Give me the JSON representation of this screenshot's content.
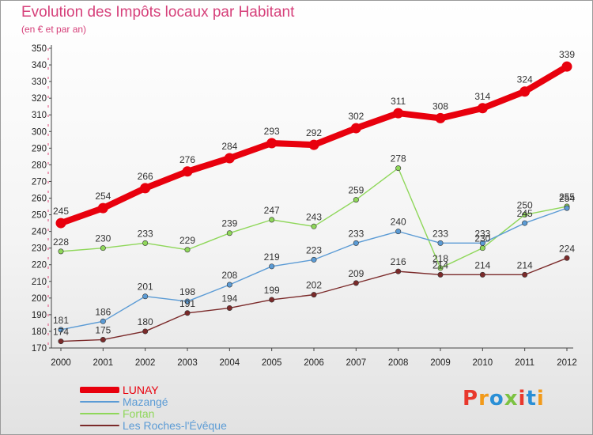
{
  "title": "Evolution des Impôts locaux par Habitant",
  "subtitle": "(en € et par an)",
  "logo_text": "Proxiti",
  "logo_colors": [
    "#e8382c",
    "#f29a1a",
    "#2a8fd6",
    "#7cc242",
    "#e8382c",
    "#2a8fd6",
    "#f29a1a"
  ],
  "chart_data": {
    "type": "line",
    "x": [
      "2000",
      "2001",
      "2002",
      "2003",
      "2004",
      "2005",
      "2006",
      "2007",
      "2008",
      "2009",
      "2010",
      "2011",
      "2012"
    ],
    "ylim": [
      170,
      350
    ],
    "yticks": [
      170,
      180,
      190,
      200,
      210,
      220,
      230,
      240,
      250,
      260,
      270,
      280,
      290,
      300,
      310,
      320,
      330,
      340,
      350
    ],
    "grid": false,
    "legend_placement": "bottom-left",
    "series": [
      {
        "name": "LUNAY",
        "color": "#e8000d",
        "values": [
          245,
          254,
          266,
          276,
          284,
          293,
          292,
          302,
          311,
          308,
          314,
          324,
          339
        ]
      },
      {
        "name": "Mazangé",
        "color": "#5b9bd5",
        "values": [
          181,
          186,
          201,
          198,
          208,
          219,
          223,
          233,
          240,
          233,
          233,
          245,
          254
        ]
      },
      {
        "name": "Fortan",
        "color": "#8fd75a",
        "values": [
          228,
          230,
          233,
          229,
          239,
          247,
          243,
          259,
          278,
          218,
          230,
          250,
          255
        ]
      },
      {
        "name": "Les Roches-l'Évêque",
        "color": "#7b2a2a",
        "values": [
          174,
          175,
          180,
          191,
          194,
          199,
          202,
          209,
          216,
          214,
          214,
          214,
          224
        ]
      }
    ]
  }
}
